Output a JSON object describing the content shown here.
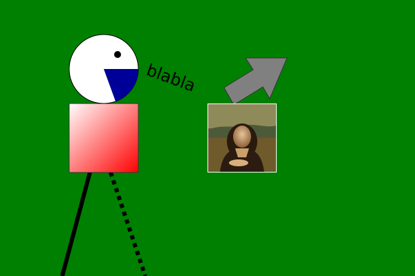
{
  "speech_text": "blabla",
  "colors": {
    "background": "#008000",
    "head": "#ffffff",
    "mouth": "#000099",
    "body_gradient_start": "#ffffff",
    "body_gradient_end": "#ff0000",
    "arrow": "#808080",
    "outline": "#000000"
  },
  "icons": {
    "arrow": "arrow-up-right-icon",
    "painting": "mona-lisa-portrait"
  }
}
